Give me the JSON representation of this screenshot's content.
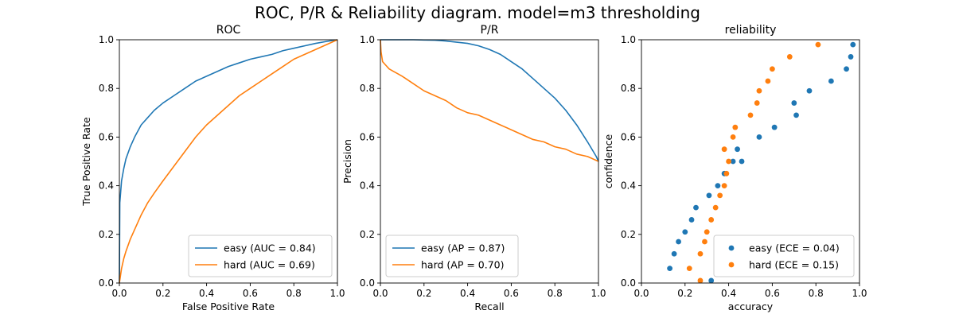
{
  "figure": {
    "suptitle": "ROC, P/R & Reliability diagram. model=m3 thresholding"
  },
  "chart_data": [
    {
      "type": "line",
      "title": "ROC",
      "xlabel": "False Positive Rate",
      "ylabel": "True Positive Rate",
      "xlim": [
        0,
        1
      ],
      "ylim": [
        0,
        1
      ],
      "xticks": [
        "0.0",
        "0.2",
        "0.4",
        "0.6",
        "0.8",
        "1.0"
      ],
      "yticks": [
        "0.0",
        "0.2",
        "0.4",
        "0.6",
        "0.8",
        "1.0"
      ],
      "grid": false,
      "legend_position": "lower-right",
      "series": [
        {
          "name": "easy (AUC = 0.84)",
          "color": "#1f77b4",
          "x": [
            0,
            0.002,
            0.01,
            0.02,
            0.03,
            0.05,
            0.07,
            0.1,
            0.13,
            0.16,
            0.2,
            0.25,
            0.3,
            0.35,
            0.4,
            0.45,
            0.5,
            0.55,
            0.6,
            0.65,
            0.7,
            0.75,
            0.8,
            0.85,
            0.9,
            0.95,
            1.0
          ],
          "y": [
            0,
            0.33,
            0.42,
            0.47,
            0.51,
            0.56,
            0.6,
            0.65,
            0.68,
            0.71,
            0.74,
            0.77,
            0.8,
            0.83,
            0.85,
            0.87,
            0.89,
            0.905,
            0.92,
            0.93,
            0.94,
            0.955,
            0.965,
            0.975,
            0.985,
            0.993,
            1.0
          ]
        },
        {
          "name": "hard (AUC = 0.69)",
          "color": "#ff7f0e",
          "x": [
            0,
            0.005,
            0.01,
            0.02,
            0.03,
            0.05,
            0.07,
            0.1,
            0.13,
            0.16,
            0.2,
            0.25,
            0.3,
            0.35,
            0.4,
            0.45,
            0.5,
            0.55,
            0.6,
            0.65,
            0.7,
            0.75,
            0.8,
            0.85,
            0.9,
            0.95,
            1.0
          ],
          "y": [
            0,
            0.03,
            0.06,
            0.1,
            0.13,
            0.18,
            0.22,
            0.28,
            0.33,
            0.37,
            0.42,
            0.48,
            0.54,
            0.6,
            0.65,
            0.69,
            0.73,
            0.77,
            0.8,
            0.83,
            0.86,
            0.89,
            0.92,
            0.94,
            0.96,
            0.98,
            1.0
          ]
        }
      ]
    },
    {
      "type": "line",
      "title": "P/R",
      "xlabel": "Recall",
      "ylabel": "Precision",
      "xlim": [
        0,
        1
      ],
      "ylim": [
        0,
        1
      ],
      "xticks": [
        "0.0",
        "0.2",
        "0.4",
        "0.6",
        "0.8",
        "1.0"
      ],
      "yticks": [
        "0.0",
        "0.2",
        "0.4",
        "0.6",
        "0.8",
        "1.0"
      ],
      "grid": false,
      "legend_position": "lower-left",
      "series": [
        {
          "name": "easy (AP = 0.87)",
          "color": "#1f77b4",
          "x": [
            0,
            0.01,
            0.05,
            0.1,
            0.15,
            0.2,
            0.25,
            0.3,
            0.35,
            0.4,
            0.45,
            0.5,
            0.55,
            0.6,
            0.65,
            0.7,
            0.75,
            0.8,
            0.85,
            0.9,
            0.95,
            0.99,
            1.0
          ],
          "y": [
            1.0,
            1.0,
            1.0,
            1.0,
            1.0,
            0.999,
            0.998,
            0.995,
            0.99,
            0.985,
            0.975,
            0.96,
            0.94,
            0.91,
            0.88,
            0.84,
            0.8,
            0.76,
            0.71,
            0.65,
            0.58,
            0.52,
            0.5
          ]
        },
        {
          "name": "hard (AP = 0.70)",
          "color": "#ff7f0e",
          "x": [
            0,
            0.003,
            0.01,
            0.02,
            0.04,
            0.06,
            0.08,
            0.1,
            0.15,
            0.2,
            0.25,
            0.3,
            0.35,
            0.4,
            0.45,
            0.5,
            0.55,
            0.6,
            0.65,
            0.7,
            0.75,
            0.8,
            0.85,
            0.9,
            0.95,
            1.0
          ],
          "y": [
            1.0,
            0.95,
            0.91,
            0.9,
            0.88,
            0.87,
            0.86,
            0.85,
            0.82,
            0.79,
            0.77,
            0.75,
            0.72,
            0.7,
            0.69,
            0.67,
            0.65,
            0.63,
            0.61,
            0.59,
            0.58,
            0.56,
            0.55,
            0.53,
            0.52,
            0.5
          ]
        }
      ]
    },
    {
      "type": "scatter",
      "title": "reliability",
      "xlabel": "accuracy",
      "ylabel": "confidence",
      "xlim": [
        0,
        1
      ],
      "ylim": [
        0,
        1
      ],
      "xticks": [
        "0.0",
        "0.2",
        "0.4",
        "0.6",
        "0.8",
        "1.0"
      ],
      "yticks": [
        "0.0",
        "0.2",
        "0.4",
        "0.6",
        "0.8",
        "1.0"
      ],
      "grid": false,
      "legend_position": "lower-right",
      "series": [
        {
          "name": "easy (ECE = 0.04)",
          "color": "#1f77b4",
          "x": [
            0.32,
            0.13,
            0.15,
            0.17,
            0.2,
            0.23,
            0.25,
            0.31,
            0.35,
            0.38,
            0.42,
            0.44,
            0.46,
            0.54,
            0.61,
            0.71,
            0.7,
            0.77,
            0.87,
            0.94,
            0.96,
            0.97
          ],
          "y": [
            0.01,
            0.06,
            0.12,
            0.17,
            0.21,
            0.26,
            0.31,
            0.36,
            0.4,
            0.45,
            0.5,
            0.55,
            0.5,
            0.6,
            0.64,
            0.69,
            0.74,
            0.79,
            0.83,
            0.88,
            0.93,
            0.98
          ]
        },
        {
          "name": "hard (ECE = 0.15)",
          "color": "#ff7f0e",
          "x": [
            0.27,
            0.22,
            0.27,
            0.29,
            0.3,
            0.32,
            0.34,
            0.36,
            0.38,
            0.39,
            0.4,
            0.38,
            0.42,
            0.43,
            0.5,
            0.53,
            0.54,
            0.58,
            0.6,
            0.68,
            0.81
          ],
          "y": [
            0.01,
            0.06,
            0.12,
            0.17,
            0.21,
            0.26,
            0.31,
            0.36,
            0.4,
            0.45,
            0.5,
            0.55,
            0.6,
            0.64,
            0.69,
            0.74,
            0.79,
            0.83,
            0.88,
            0.93,
            0.98
          ]
        }
      ]
    }
  ]
}
